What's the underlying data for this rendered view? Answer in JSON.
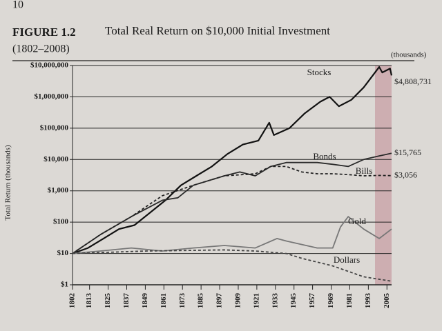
{
  "page_number": "10",
  "chart_data": {
    "type": "line",
    "figure_label": "FIGURE 1.2",
    "title": "Total Real Return on $10,000 Initial Investment",
    "subtitle": "(1802–2008)",
    "ylabel": "Total Return (thousands)",
    "unit_note": "(thousands)",
    "log_scale": true,
    "grid": true,
    "xlim": [
      1802,
      2008
    ],
    "xticks": [
      1802,
      1813,
      1825,
      1837,
      1849,
      1861,
      1873,
      1885,
      1897,
      1909,
      1921,
      1933,
      1945,
      1957,
      1969,
      1981,
      1993,
      2005
    ],
    "ylim": [
      1,
      10000000
    ],
    "yticks": [
      {
        "value": 1,
        "label": "$1"
      },
      {
        "value": 10,
        "label": "$10"
      },
      {
        "value": 100,
        "label": "$100"
      },
      {
        "value": 1000,
        "label": "$1,000"
      },
      {
        "value": 10000,
        "label": "$10,000"
      },
      {
        "value": 100000,
        "label": "$100,000"
      },
      {
        "value": 1000000,
        "label": "$1,000,000"
      },
      {
        "value": 10000000,
        "label": "$10,000,000"
      }
    ],
    "series": [
      {
        "name": "Stocks",
        "color": "#111111",
        "style": "solid",
        "end_label": "$4,808,731",
        "x": [
          1802,
          1812,
          1822,
          1832,
          1842,
          1852,
          1862,
          1872,
          1882,
          1892,
          1902,
          1912,
          1922,
          1929,
          1932,
          1942,
          1952,
          1962,
          1968,
          1974,
          1982,
          1990,
          2000,
          2002,
          2007,
          2008
        ],
        "values": [
          10,
          15,
          30,
          60,
          80,
          200,
          500,
          1500,
          3000,
          6000,
          15000,
          30000,
          40000,
          150000,
          60000,
          100000,
          300000,
          700000,
          1000000,
          500000,
          800000,
          2000000,
          9000000,
          6000000,
          8000000,
          4808731
        ]
      },
      {
        "name": "Bonds",
        "color": "#2a2a2a",
        "style": "solid",
        "end_label": "$15,765",
        "x": [
          1802,
          1820,
          1840,
          1860,
          1870,
          1880,
          1900,
          1910,
          1920,
          1930,
          1940,
          1950,
          1960,
          1970,
          1980,
          1990,
          2000,
          2008
        ],
        "values": [
          10,
          40,
          150,
          500,
          600,
          1500,
          3000,
          4000,
          3000,
          6000,
          8000,
          8000,
          8000,
          7000,
          6000,
          10000,
          13000,
          15765
        ]
      },
      {
        "name": "Bills",
        "color": "#222222",
        "style": "dashed",
        "end_label": "$3,056",
        "x": [
          1802,
          1820,
          1840,
          1860,
          1880,
          1900,
          1920,
          1930,
          1940,
          1950,
          1960,
          1970,
          1980,
          1990,
          2000,
          2008
        ],
        "values": [
          10,
          40,
          150,
          700,
          1500,
          3000,
          3500,
          6000,
          6000,
          4000,
          3500,
          3500,
          3300,
          3000,
          3100,
          3056
        ]
      },
      {
        "name": "Gold",
        "color": "#777777",
        "style": "solid",
        "x": [
          1802,
          1820,
          1840,
          1860,
          1880,
          1900,
          1920,
          1934,
          1940,
          1960,
          1970,
          1975,
          1980,
          1990,
          2000,
          2008
        ],
        "values": [
          10,
          12,
          15,
          12,
          15,
          18,
          15,
          30,
          25,
          15,
          15,
          70,
          150,
          60,
          30,
          60
        ]
      },
      {
        "name": "Dollars",
        "color": "#444444",
        "style": "dashed",
        "x": [
          1802,
          1850,
          1900,
          1920,
          1940,
          1950,
          1970,
          1990,
          2008
        ],
        "values": [
          10,
          12,
          13,
          12,
          10,
          7,
          4,
          1.8,
          1.3
        ]
      }
    ]
  }
}
